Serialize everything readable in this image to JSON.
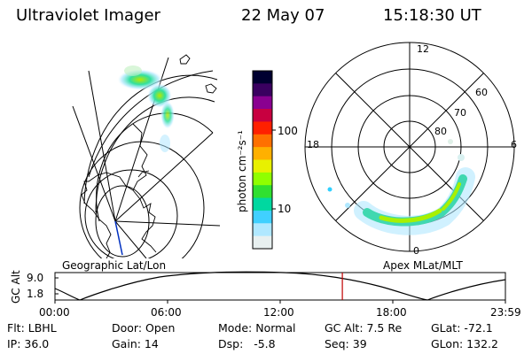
{
  "header": {
    "instrument": "Ultraviolet Imager",
    "date": "22 May 07",
    "time": "15:18:30 UT"
  },
  "geo_panel": {
    "caption": "Geographic Lat/Lon"
  },
  "colorbar": {
    "unit_label": "photon cm⁻²s⁻¹",
    "ticks": [
      "100",
      "10"
    ],
    "colors": [
      "#000030",
      "#3a0060",
      "#8a0090",
      "#c80040",
      "#ff2000",
      "#ff7000",
      "#ffb000",
      "#e8f000",
      "#90ff00",
      "#30e030",
      "#00d8a0",
      "#40d0ff",
      "#b0e8ff",
      "#e8f0f0"
    ]
  },
  "polar_panel": {
    "caption": "Apex MLat/MLT",
    "mlt_labels": {
      "top": "12",
      "left": "18",
      "right": "6",
      "bottom": "0"
    },
    "lat_labels": [
      "60",
      "70",
      "80"
    ]
  },
  "altitude_plot": {
    "ylabel": "GC Alt",
    "yticks": [
      "9.0",
      "1.8"
    ],
    "xticks": [
      "00:00",
      "06:00",
      "12:00",
      "18:00",
      "23:59"
    ],
    "current_time_marker_hours": 15.31,
    "marker_color": "#c00000"
  },
  "info": {
    "row1": {
      "filter": "Flt: LBHL",
      "door": "Door: Open",
      "mode": "Mode: Normal",
      "gc_alt": "GC Alt: 7.5 Re",
      "glat": "GLat: -72.1"
    },
    "row2": {
      "ip": "IP: 36.0",
      "gain": "Gain: 14",
      "dsp": "Dsp:   -5.8",
      "seq": "Seq: 39",
      "glon": "GLon: 132.2"
    }
  }
}
